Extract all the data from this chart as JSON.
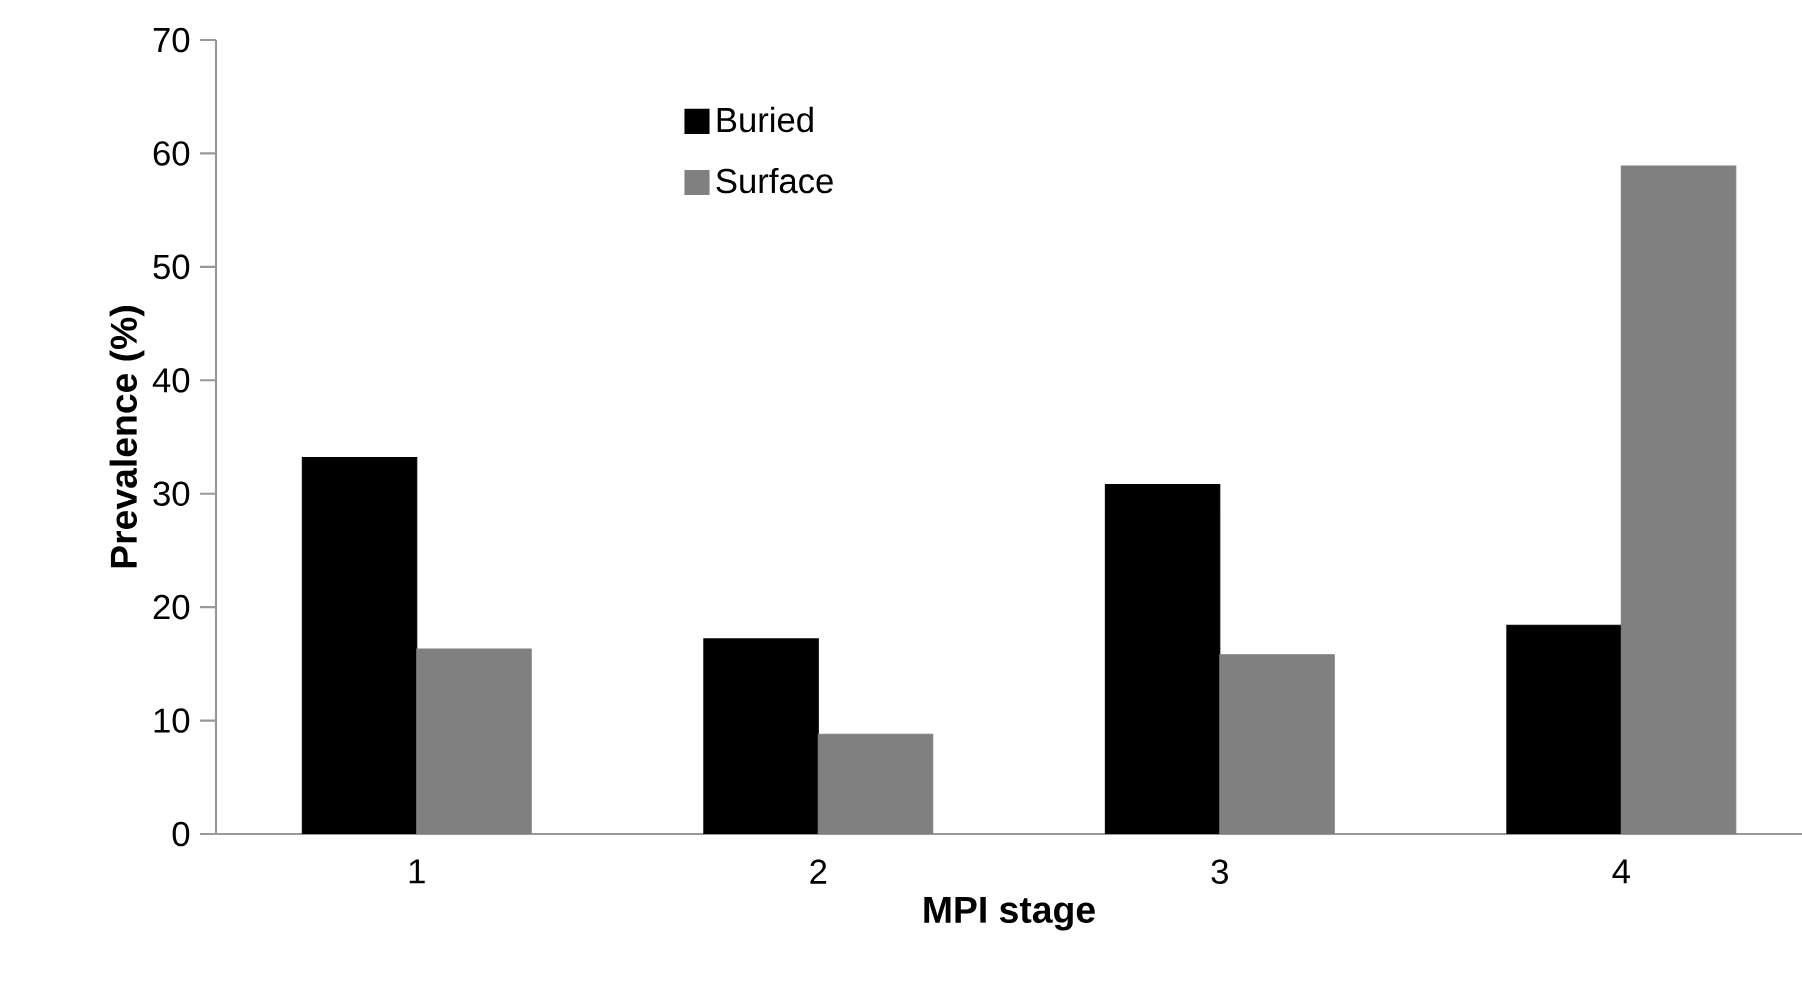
{
  "chart_data": {
    "type": "bar",
    "xlabel": "MPI stage",
    "ylabel": "Prevalence (%)",
    "categories": [
      "1",
      "2",
      "3",
      "4"
    ],
    "series": [
      {
        "name": "Buried",
        "color": "#000000",
        "values": [
          33.2,
          17.2,
          30.8,
          18.4
        ]
      },
      {
        "name": "Surface",
        "color": "#808080",
        "values": [
          16.3,
          8.8,
          15.8,
          58.9
        ]
      }
    ],
    "ylim": [
      0,
      70
    ],
    "yticks": [
      0,
      10,
      20,
      30,
      40,
      50,
      60,
      70
    ],
    "grid": false,
    "legend": "top"
  }
}
